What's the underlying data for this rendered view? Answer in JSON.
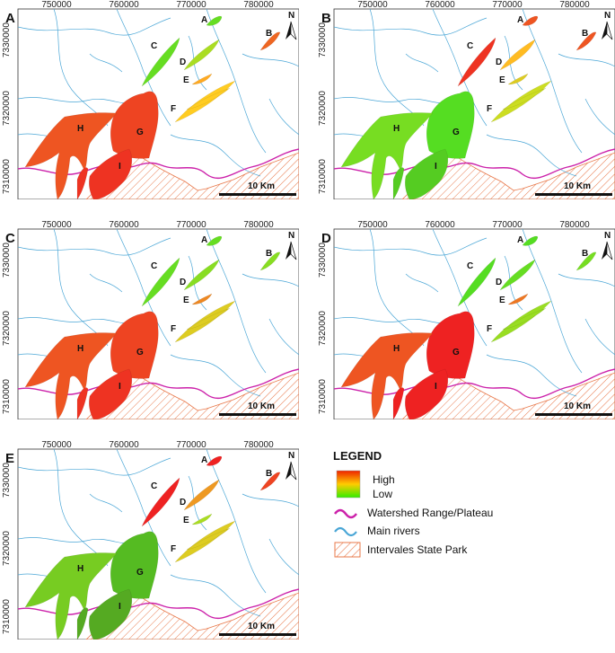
{
  "x_ticks": [
    "750000",
    "760000",
    "770000",
    "780000"
  ],
  "y_ticks": [
    "7330000",
    "7320000",
    "7310000"
  ],
  "zone_labels": [
    "A",
    "B",
    "C",
    "D",
    "E",
    "F",
    "G",
    "H",
    "I"
  ],
  "scale_label": "10 Km",
  "north_label": "N",
  "panels": [
    {
      "letter": "A",
      "zones": {
        "A": "#66dd22",
        "B": "#ee6622",
        "C": "#66dd22",
        "D": "#aadd22",
        "E": "#ffaa22",
        "F": "#ffcc22",
        "G": "#ee4422",
        "H": "#ee5522",
        "I": "#ee3322"
      }
    },
    {
      "letter": "B",
      "zones": {
        "A": "#ee5522",
        "B": "#ee5522",
        "C": "#ee3322",
        "D": "#ffbb22",
        "E": "#ddcc22",
        "F": "#ccdd22",
        "G": "#55dd22",
        "H": "#77dd22",
        "I": "#55cc22"
      }
    },
    {
      "letter": "C",
      "zones": {
        "A": "#66dd22",
        "B": "#88dd22",
        "C": "#66dd22",
        "D": "#88dd22",
        "E": "#ee8822",
        "F": "#ddcc22",
        "G": "#ee4422",
        "H": "#ee5522",
        "I": "#ee3322"
      }
    },
    {
      "letter": "D",
      "zones": {
        "A": "#55dd22",
        "B": "#77dd22",
        "C": "#55dd22",
        "D": "#66dd22",
        "E": "#ee7722",
        "F": "#99dd22",
        "G": "#ee2222",
        "H": "#ee5522",
        "I": "#ee2222"
      }
    },
    {
      "letter": "E",
      "zones": {
        "A": "#ee2222",
        "B": "#ee4422",
        "C": "#ee2222",
        "D": "#ee9922",
        "E": "#aadd22",
        "F": "#ddcc22",
        "G": "#55bb22",
        "H": "#77cc22",
        "I": "#55aa22"
      }
    }
  ],
  "legend": {
    "title": "LEGEND",
    "high": "High",
    "low": "Low",
    "watershed": "Watershed Range/Plateau",
    "rivers": "Main rivers",
    "park": "Intervales State Park",
    "colors": {
      "high": "#ee2200",
      "mid": "#ffcc00",
      "low": "#33ee00",
      "watershed": "#cc22aa",
      "rivers": "#4aa6d6",
      "park": "#e8784a"
    }
  }
}
